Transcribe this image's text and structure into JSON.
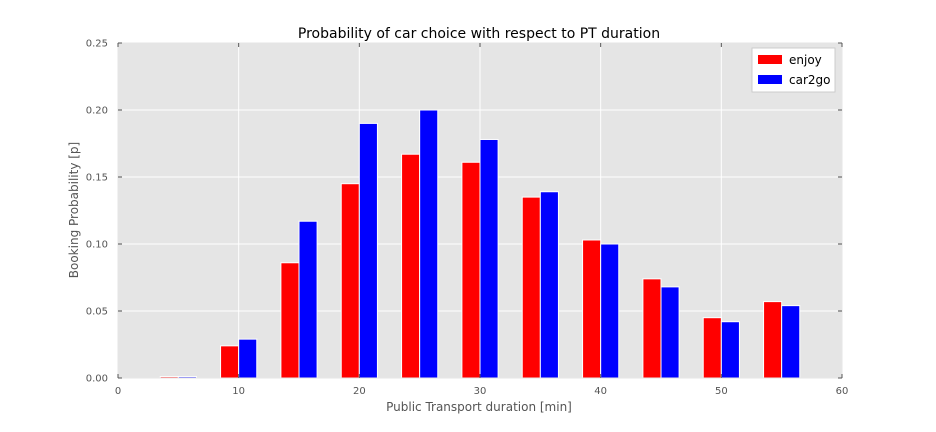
{
  "chart_data": {
    "type": "bar",
    "title": "Probability of car choice with respect to PT duration",
    "xlabel": "Public Transport duration [min]",
    "ylabel": "Booking Probability [p]",
    "xlim": [
      0,
      60
    ],
    "ylim": [
      0,
      0.25
    ],
    "xticks": [
      0,
      10,
      20,
      30,
      40,
      50,
      60
    ],
    "xtick_labels": [
      "0",
      "10",
      "20",
      "30",
      "40",
      "50",
      "60"
    ],
    "yticks": [
      0,
      0.05,
      0.1,
      0.15,
      0.2,
      0.25
    ],
    "ytick_labels": [
      "0.00",
      "0.05",
      "0.10",
      "0.15",
      "0.20",
      "0.25"
    ],
    "grid": true,
    "legend_position": "top-right",
    "bar_width": 1.5,
    "categories": [
      5,
      10,
      15,
      20,
      25,
      30,
      35,
      40,
      45,
      50,
      55
    ],
    "series": [
      {
        "name": "enjoy",
        "color": "#ff0000",
        "offset": -0.75,
        "values": [
          0.001,
          0.024,
          0.086,
          0.145,
          0.167,
          0.161,
          0.135,
          0.103,
          0.074,
          0.045,
          0.057
        ]
      },
      {
        "name": "car2go",
        "color": "#0000ff",
        "offset": 0.75,
        "values": [
          0.001,
          0.029,
          0.117,
          0.19,
          0.2,
          0.178,
          0.139,
          0.1,
          0.068,
          0.042,
          0.054
        ]
      }
    ],
    "style": {
      "plot_background": "#e5e5e5",
      "grid_color": "#ffffff",
      "bar_edge_color": "#ffffff"
    }
  }
}
